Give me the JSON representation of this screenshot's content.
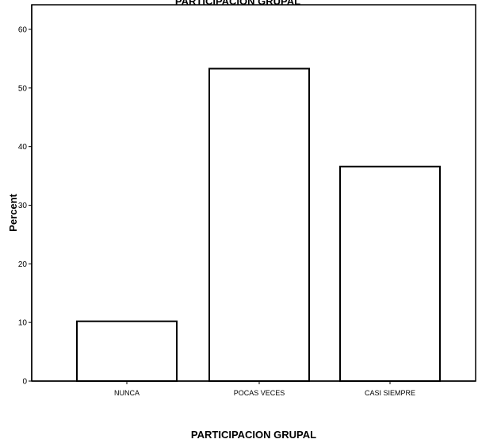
{
  "chart_data": {
    "type": "bar",
    "title": "PARTICIPACION GRUPAL",
    "xlabel": "PARTICIPACION GRUPAL",
    "ylabel": "Percent",
    "categories": [
      "NUNCA",
      "POCAS VECES",
      "CASI SIEMPRE"
    ],
    "values": [
      10.2,
      53.3,
      36.6
    ],
    "ylim": [
      0,
      60
    ],
    "yticks": [
      "0",
      "10",
      "20",
      "30",
      "40",
      "50",
      "60"
    ],
    "grid": false,
    "legend": "none",
    "bar_fill": "#ffffff",
    "bar_stroke": "#000000"
  }
}
